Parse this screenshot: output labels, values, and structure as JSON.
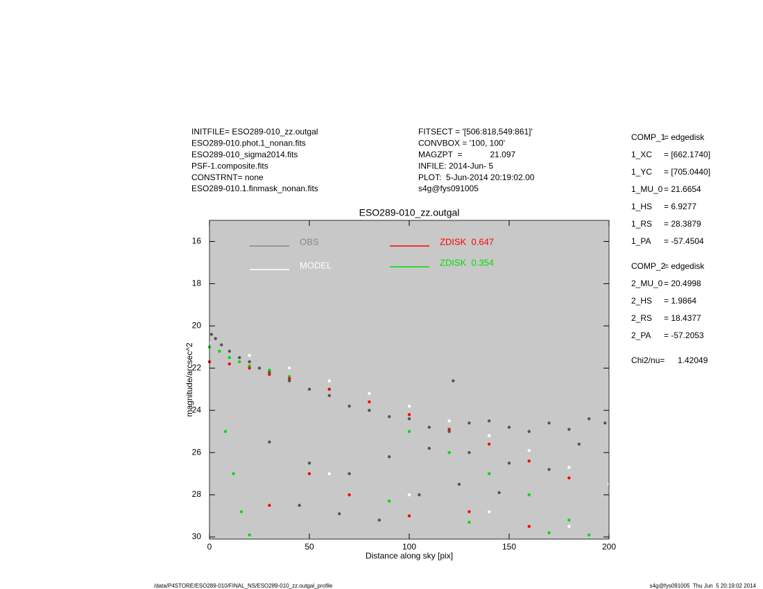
{
  "chart_data": {
    "type": "scatter",
    "title": "ESO289-010_zz.outgal",
    "xlabel": "Distance along sky [pix]",
    "ylabel": "magnitude/arcsec^2",
    "xlim": [
      0,
      200
    ],
    "ylim": [
      30.1,
      15
    ],
    "xticks": [
      0,
      50,
      100,
      150,
      200
    ],
    "yticks": [
      16,
      18,
      20,
      22,
      24,
      26,
      28,
      30
    ],
    "background": "#c8c8c8",
    "series": [
      {
        "name": "OBS",
        "color": "#555555",
        "x": [
          1,
          3,
          6,
          10,
          15,
          20,
          25,
          30,
          40,
          50,
          60,
          70,
          80,
          90,
          100,
          110,
          120,
          130,
          140,
          150,
          160,
          170,
          180,
          190,
          198,
          30,
          50,
          70,
          90,
          110,
          130,
          150,
          170,
          185,
          45,
          65,
          85,
          105,
          125,
          145,
          122
        ],
        "values": [
          20.4,
          20.6,
          20.9,
          21.2,
          21.5,
          21.7,
          22.0,
          22.2,
          22.6,
          23.0,
          23.3,
          23.8,
          24.0,
          24.3,
          24.4,
          24.8,
          25.0,
          24.6,
          24.5,
          24.8,
          25.0,
          24.6,
          24.9,
          24.4,
          24.6,
          25.5,
          26.5,
          27.0,
          26.2,
          25.8,
          26.0,
          26.5,
          26.8,
          25.6,
          28.5,
          28.9,
          29.2,
          28.0,
          27.5,
          27.9,
          22.6
        ]
      },
      {
        "name": "MODEL",
        "color": "#ffffff",
        "x": [
          0,
          20,
          40,
          60,
          80,
          100,
          120,
          140,
          160,
          180,
          200,
          60,
          100,
          140,
          180
        ],
        "values": [
          20.8,
          21.4,
          22.0,
          22.6,
          23.2,
          23.8,
          24.5,
          25.2,
          25.9,
          26.7,
          27.5,
          27.0,
          28.0,
          28.8,
          29.5
        ]
      },
      {
        "name": "ZDISK  0.647",
        "color": "#ff0000",
        "x": [
          0,
          10,
          20,
          30,
          40,
          60,
          80,
          100,
          120,
          140,
          160,
          180,
          30,
          50,
          70,
          100,
          130,
          160
        ],
        "values": [
          21.7,
          21.8,
          22.0,
          22.3,
          22.5,
          23.0,
          23.6,
          24.2,
          24.9,
          25.6,
          26.4,
          27.2,
          28.5,
          27.0,
          28.0,
          29.0,
          28.8,
          29.5
        ]
      },
      {
        "name": "ZDISK  0.354",
        "color": "#00dd00",
        "x": [
          0,
          5,
          10,
          15,
          20,
          30,
          40,
          60,
          80,
          100,
          120,
          140,
          160,
          180,
          190,
          8,
          12,
          16,
          20,
          50,
          90,
          130,
          170
        ],
        "values": [
          21.0,
          21.2,
          21.5,
          21.7,
          21.9,
          22.1,
          22.4,
          23.0,
          24.0,
          25.0,
          26.0,
          27.0,
          28.0,
          29.2,
          29.9,
          25.0,
          27.0,
          28.8,
          29.9,
          26.5,
          28.3,
          29.3,
          29.8
        ]
      }
    ]
  },
  "info_left": [
    "INITFILE= ESO289-010_zz.outgal",
    "ESO289-010.phot.1_nonan.fits",
    "ESO289-010_sigma2014.fits",
    "PSF-1.composite.fits",
    "CONSTRNT= none",
    "ESO289-010.1.finmask_nonan.fits"
  ],
  "info_center": [
    "FITSECT = '[506:818,549:861]'",
    "CONVBOX = '100, 100'",
    "MAGZPT  =            21.097",
    "INFILE: 2014-Jun- 5",
    "PLOT:  5-Jun-2014 20:19:02.00",
    "s4g@fys091005"
  ],
  "components": [
    [
      {
        "label": "COMP_1",
        "value": "= edgedisk"
      },
      {
        "label": "1_XC",
        "value": "= [662.1740]"
      },
      {
        "label": "1_YC",
        "value": "= [705.0440]"
      },
      {
        "label": "1_MU_0",
        "value": "= 21.6654"
      },
      {
        "label": "1_HS",
        "value": "= 6.9277"
      },
      {
        "label": "1_RS",
        "value": "= 28.3879"
      },
      {
        "label": "1_PA",
        "value": "= -57.4504"
      }
    ],
    [
      {
        "label": "COMP_2",
        "value": "= edgedisk"
      },
      {
        "label": "2_MU_0",
        "value": "= 20.4998"
      },
      {
        "label": "2_HS",
        "value": "= 1.9864"
      },
      {
        "label": "2_RS",
        "value": "= 18.4377"
      },
      {
        "label": "2_PA",
        "value": "= -57.2053"
      }
    ],
    [
      {
        "label": "Chi2/nu=",
        "value": "1.42049"
      }
    ]
  ],
  "footer_left": "/data/P4STORE/ESO289-010/FINAL_NS/ESO289-010_zz.outgal_profile",
  "footer_right": "s4g@fys091005  Thu Jun  5 20:19:02 2014"
}
